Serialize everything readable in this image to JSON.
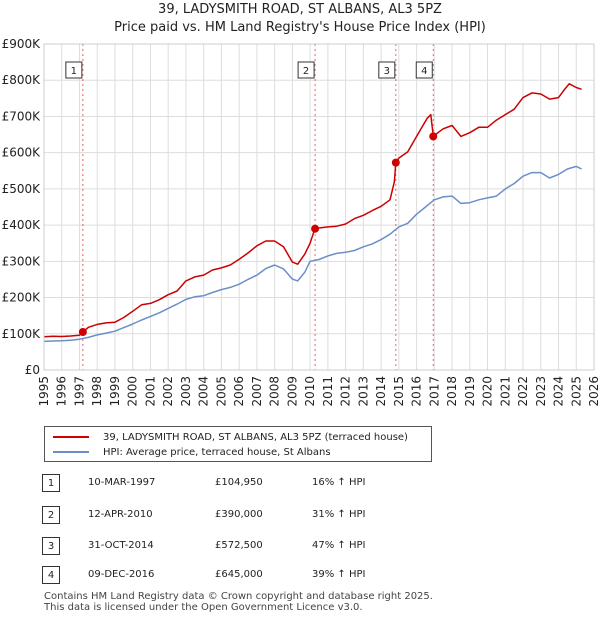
{
  "chart_data": {
    "type": "line",
    "title": "39, LADYSMITH ROAD, ST ALBANS, AL3 5PZ",
    "subtitle": "Price paid vs. HM Land Registry's House Price Index (HPI)",
    "xlim": [
      1995,
      2026
    ],
    "ylim": [
      0,
      900000
    ],
    "x_ticks": [
      "1995",
      "1996",
      "1997",
      "1998",
      "1999",
      "2000",
      "2001",
      "2002",
      "2003",
      "2004",
      "2005",
      "2006",
      "2007",
      "2008",
      "2009",
      "2010",
      "2011",
      "2012",
      "2013",
      "2014",
      "2015",
      "2016",
      "2017",
      "2018",
      "2019",
      "2020",
      "2021",
      "2022",
      "2023",
      "2024",
      "2025",
      "2026"
    ],
    "y_ticks": [
      {
        "value": 0,
        "label": "£0"
      },
      {
        "value": 100000,
        "label": "£100K"
      },
      {
        "value": 200000,
        "label": "£200K"
      },
      {
        "value": 300000,
        "label": "£300K"
      },
      {
        "value": 400000,
        "label": "£400K"
      },
      {
        "value": 500000,
        "label": "£500K"
      },
      {
        "value": 600000,
        "label": "£600K"
      },
      {
        "value": 700000,
        "label": "£700K"
      },
      {
        "value": 800000,
        "label": "£800K"
      },
      {
        "value": 900000,
        "label": "£900K"
      }
    ],
    "grid": true,
    "series": [
      {
        "name": "39, LADYSMITH ROAD, ST ALBANS, AL3 5PZ (terraced house)",
        "color": "#cc0000",
        "x": [
          1995.0,
          1995.5,
          1996.0,
          1996.5,
          1997.0,
          1997.19,
          1997.5,
          1998.0,
          1998.5,
          1999.0,
          1999.5,
          2000.0,
          2000.5,
          2001.0,
          2001.5,
          2002.0,
          2002.5,
          2003.0,
          2003.5,
          2004.0,
          2004.5,
          2005.0,
          2005.5,
          2006.0,
          2006.5,
          2007.0,
          2007.5,
          2008.0,
          2008.5,
          2009.0,
          2009.3,
          2009.7,
          2010.0,
          2010.27,
          2010.5,
          2011.0,
          2011.5,
          2012.0,
          2012.5,
          2013.0,
          2013.5,
          2014.0,
          2014.5,
          2014.75,
          2014.83,
          2015.0,
          2015.5,
          2016.0,
          2016.3,
          2016.6,
          2016.8,
          2016.94,
          2017.2,
          2017.5,
          2018.0,
          2018.5,
          2019.0,
          2019.5,
          2020.0,
          2020.5,
          2021.0,
          2021.5,
          2022.0,
          2022.5,
          2023.0,
          2023.5,
          2024.0,
          2024.3,
          2024.6,
          2025.0,
          2025.3
        ],
        "y": [
          92000,
          93000,
          92500,
          94000,
          96000,
          104950,
          118000,
          126000,
          130000,
          132000,
          145000,
          162000,
          180000,
          184000,
          194000,
          208000,
          218000,
          246000,
          257000,
          262000,
          276000,
          282000,
          290000,
          306000,
          323000,
          343000,
          356000,
          356000,
          340000,
          298000,
          292000,
          320000,
          350000,
          390000,
          392000,
          395000,
          397000,
          403000,
          418000,
          427000,
          440000,
          452000,
          470000,
          520000,
          572500,
          585000,
          602000,
          645000,
          670000,
          695000,
          705000,
          645000,
          655000,
          666000,
          675000,
          645000,
          655000,
          670000,
          670000,
          690000,
          705000,
          720000,
          752000,
          765000,
          762000,
          748000,
          752000,
          772000,
          790000,
          780000,
          775000
        ]
      },
      {
        "name": "HPI: Average price, terraced house, St Albans",
        "color": "#6a8fc8",
        "x": [
          1995.0,
          1995.5,
          1996.0,
          1996.5,
          1997.0,
          1997.5,
          1998.0,
          1998.5,
          1999.0,
          1999.5,
          2000.0,
          2000.5,
          2001.0,
          2001.5,
          2002.0,
          2002.5,
          2003.0,
          2003.5,
          2004.0,
          2004.5,
          2005.0,
          2005.5,
          2006.0,
          2006.5,
          2007.0,
          2007.5,
          2008.0,
          2008.5,
          2009.0,
          2009.3,
          2009.7,
          2010.0,
          2010.5,
          2011.0,
          2011.5,
          2012.0,
          2012.5,
          2013.0,
          2013.5,
          2014.0,
          2014.5,
          2015.0,
          2015.5,
          2016.0,
          2016.5,
          2017.0,
          2017.5,
          2018.0,
          2018.5,
          2019.0,
          2019.5,
          2020.0,
          2020.5,
          2021.0,
          2021.5,
          2022.0,
          2022.5,
          2023.0,
          2023.5,
          2024.0,
          2024.5,
          2025.0,
          2025.3
        ],
        "y": [
          79000,
          80000,
          80500,
          82000,
          85000,
          90000,
          97000,
          102000,
          107000,
          117000,
          127000,
          138000,
          148000,
          158000,
          170000,
          182000,
          195000,
          202000,
          205000,
          214000,
          222000,
          228000,
          237000,
          250000,
          262000,
          280000,
          290000,
          279000,
          251000,
          246000,
          270000,
          300000,
          305000,
          315000,
          322000,
          325000,
          330000,
          340000,
          348000,
          360000,
          375000,
          395000,
          405000,
          430000,
          450000,
          470000,
          478000,
          480000,
          460000,
          462000,
          470000,
          475000,
          480000,
          500000,
          515000,
          535000,
          545000,
          545000,
          530000,
          540000,
          555000,
          562000,
          555000
        ]
      }
    ],
    "annotations": [
      {
        "label": "1",
        "x": 1997.19,
        "y": 104950
      },
      {
        "label": "2",
        "x": 2010.28,
        "y": 390000
      },
      {
        "label": "3",
        "x": 2014.83,
        "y": 572500
      },
      {
        "label": "4",
        "x": 2016.94,
        "y": 645000
      }
    ]
  },
  "legend": {
    "items": [
      {
        "label": "39, LADYSMITH ROAD, ST ALBANS, AL3 5PZ (terraced house)",
        "color": "#cc0000"
      },
      {
        "label": "HPI: Average price, terraced house, St Albans",
        "color": "#6a8fc8"
      }
    ]
  },
  "sales": [
    {
      "num": "1",
      "date": "10-MAR-1997",
      "price": "£104,950",
      "hpi": "16% ↑ HPI"
    },
    {
      "num": "2",
      "date": "12-APR-2010",
      "price": "£390,000",
      "hpi": "31% ↑ HPI"
    },
    {
      "num": "3",
      "date": "31-OCT-2014",
      "price": "£572,500",
      "hpi": "47% ↑ HPI"
    },
    {
      "num": "4",
      "date": "09-DEC-2016",
      "price": "£645,000",
      "hpi": "39% ↑ HPI"
    }
  ],
  "footer": {
    "line1": "Contains HM Land Registry data © Crown copyright and database right 2025.",
    "line2": "This data is licensed under the Open Government Licence v3.0."
  }
}
